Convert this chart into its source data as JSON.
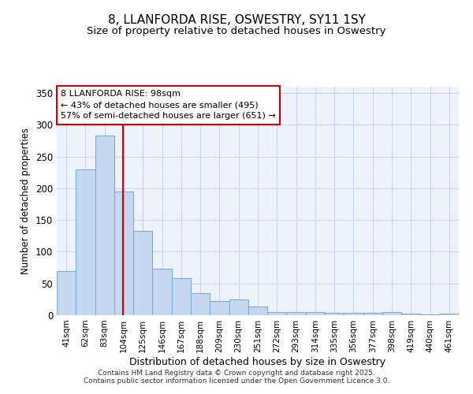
{
  "title_line1": "8, LLANFORDA RISE, OSWESTRY, SY11 1SY",
  "title_line2": "Size of property relative to detached houses in Oswestry",
  "xlabel": "Distribution of detached houses by size in Oswestry",
  "ylabel": "Number of detached properties",
  "categories": [
    "41sqm",
    "62sqm",
    "83sqm",
    "104sqm",
    "125sqm",
    "146sqm",
    "167sqm",
    "188sqm",
    "209sqm",
    "230sqm",
    "251sqm",
    "272sqm",
    "293sqm",
    "314sqm",
    "335sqm",
    "356sqm",
    "377sqm",
    "398sqm",
    "419sqm",
    "440sqm",
    "461sqm"
  ],
  "values": [
    70,
    230,
    283,
    195,
    133,
    73,
    58,
    35,
    22,
    25,
    14,
    5,
    5,
    5,
    4,
    4,
    4,
    5,
    3,
    1,
    2
  ],
  "bar_color": "#c5d8f0",
  "bar_edge_color": "#7aaed6",
  "vline_x": 2.95,
  "vline_color": "#cc0000",
  "ylim": [
    0,
    360
  ],
  "yticks": [
    0,
    50,
    100,
    150,
    200,
    250,
    300,
    350
  ],
  "annotation_text": "8 LLANFORDA RISE: 98sqm\n← 43% of detached houses are smaller (495)\n57% of semi-detached houses are larger (651) →",
  "annotation_box_color": "#cc0000",
  "footer_line1": "Contains HM Land Registry data © Crown copyright and database right 2025.",
  "footer_line2": "Contains public sector information licensed under the Open Government Licence 3.0.",
  "background_color": "#eef2fc",
  "grid_color": "#c8d4f0"
}
